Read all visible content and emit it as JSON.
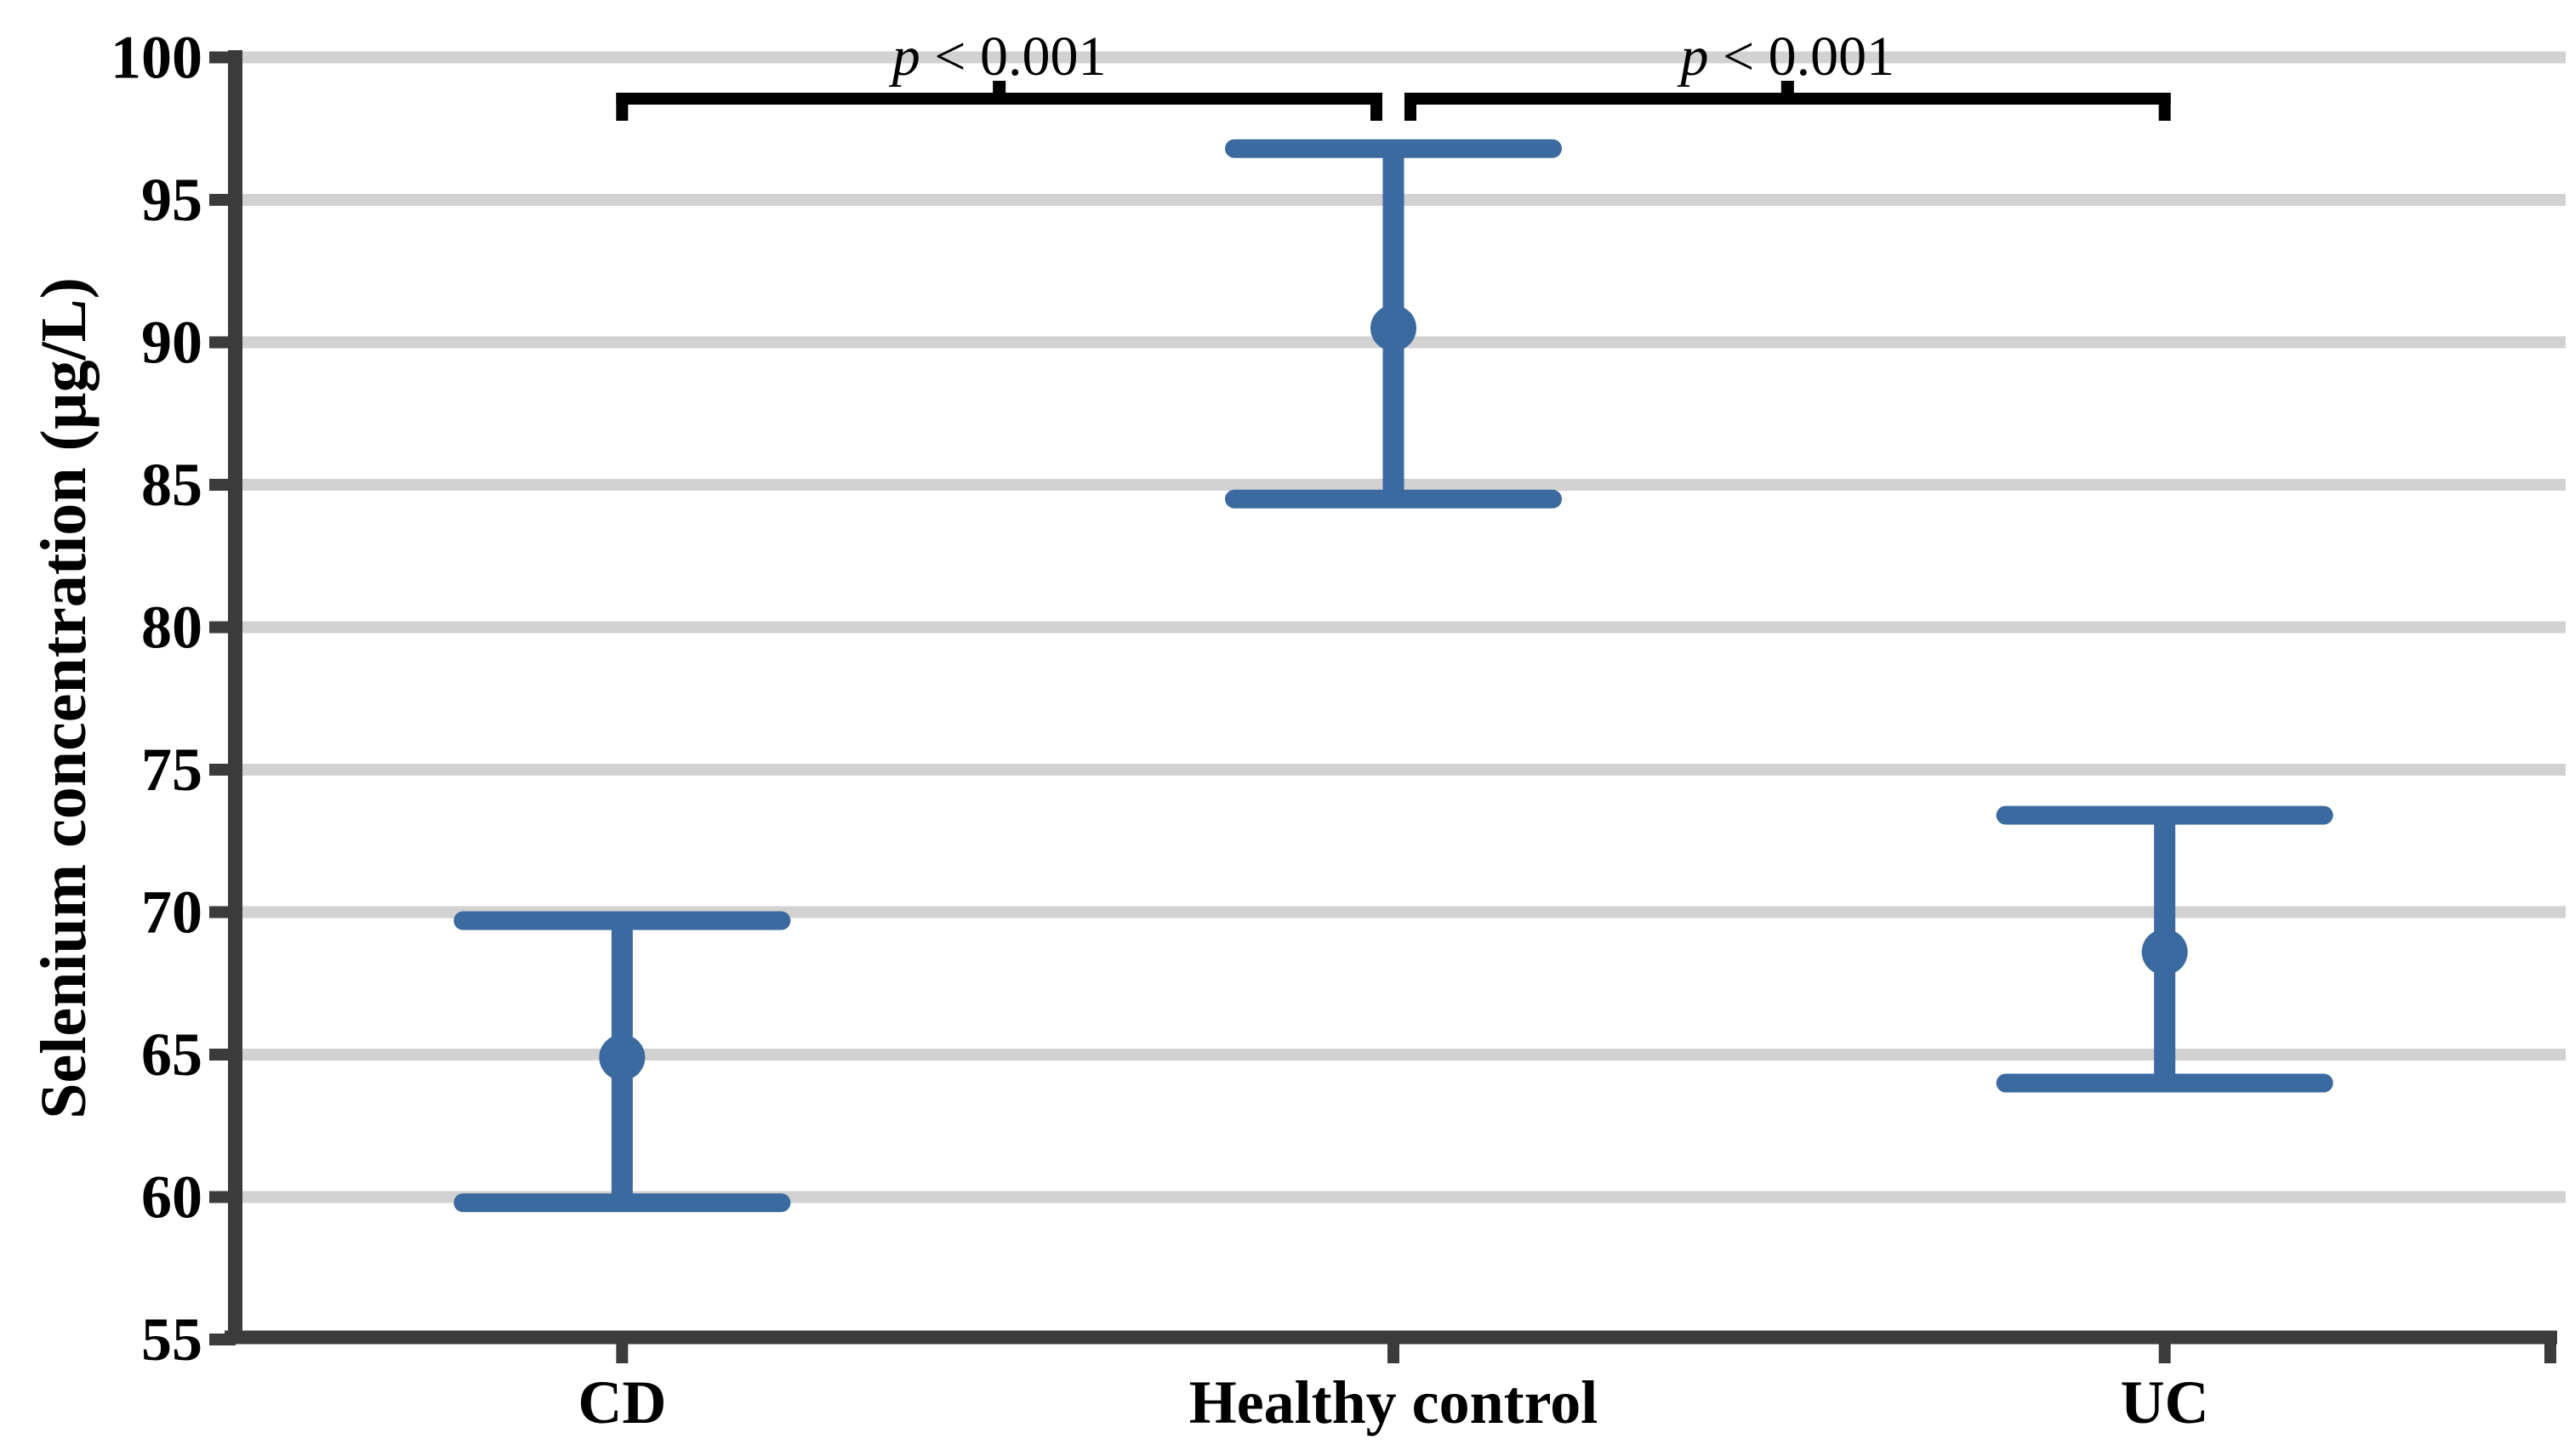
{
  "figure": {
    "colors": {
      "marker_blue": "#3a6a9f",
      "axis_dark": "#3b3b3b",
      "gridline_gray": "#d2d2d2",
      "bracket_black": "#000000",
      "background": "#ffffff"
    }
  },
  "chart_data": {
    "type": "scatter",
    "variant": "mean-with-ci-error-bars",
    "title": "",
    "xlabel": "",
    "ylabel": "Selenium concentration (µg/L)",
    "ylim": [
      55,
      100
    ],
    "yticks": [
      55,
      60,
      65,
      70,
      75,
      80,
      85,
      90,
      95,
      100
    ],
    "grid": "horizontal-gridlines-on",
    "legend_position": "none",
    "categories": [
      "CD",
      "Healthy control",
      "UC"
    ],
    "series": [
      {
        "means": [
          64.9,
          90.5,
          68.6
        ],
        "ci_low": [
          59.8,
          84.5,
          64.0
        ],
        "ci_high": [
          69.7,
          96.8,
          73.4
        ]
      }
    ],
    "annotations": [
      {
        "type": "significance-bracket",
        "between": [
          "CD",
          "Healthy control"
        ],
        "label": "p < 0.001",
        "label_italic_part": "p",
        "label_rest": " < 0.001"
      },
      {
        "type": "significance-bracket",
        "between": [
          "Healthy control",
          "UC"
        ],
        "label": "p < 0.001",
        "label_italic_part": "p",
        "label_rest": " < 0.001"
      }
    ]
  }
}
